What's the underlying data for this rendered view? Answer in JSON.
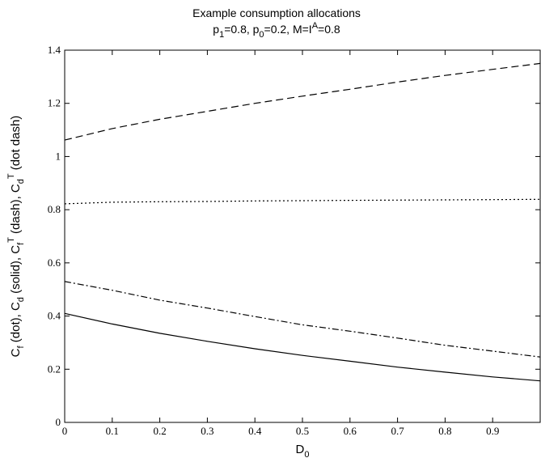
{
  "chart_data": {
    "type": "line",
    "title": "Example consumption allocations",
    "subtitle": {
      "parts": [
        {
          "t": "p"
        },
        {
          "t": "1",
          "sub": true
        },
        {
          "t": "=0.8, p"
        },
        {
          "t": "0",
          "sub": true
        },
        {
          "t": "=0.2, M=I"
        },
        {
          "t": "A",
          "sup": true
        },
        {
          "t": "=0.8"
        }
      ]
    },
    "xlabel": {
      "parts": [
        {
          "t": "D"
        },
        {
          "t": "0",
          "sub": true
        }
      ]
    },
    "ylabel": {
      "parts": [
        {
          "t": "C"
        },
        {
          "t": "f",
          "sub": true
        },
        {
          "t": " (dot), C"
        },
        {
          "t": "d",
          "sub": true
        },
        {
          "t": " (solid), C"
        },
        {
          "t": "f",
          "sub": true
        },
        {
          "t": "T",
          "sup": true
        },
        {
          "t": " (dash), C"
        },
        {
          "t": "d",
          "sub": true
        },
        {
          "t": "T",
          "sup": true
        },
        {
          "t": " (dot dash)"
        }
      ]
    },
    "xlim": [
      0,
      1
    ],
    "ylim": [
      0,
      1.4
    ],
    "xticks": [
      "0",
      "0.1",
      "0.2",
      "0.3",
      "0.4",
      "0.5",
      "0.6",
      "0.7",
      "0.8",
      "0.9"
    ],
    "yticks": [
      "0",
      "0.2",
      "0.4",
      "0.6",
      "0.8",
      "1",
      "1.2",
      "1.4"
    ],
    "grid": false,
    "line_color": "#000000",
    "series": [
      {
        "style": "dot",
        "x": [
          0,
          0.1,
          0.2,
          0.3,
          0.4,
          0.5,
          0.6,
          0.7,
          0.8,
          0.9,
          1.0
        ],
        "y": [
          0.822,
          0.828,
          0.83,
          0.831,
          0.833,
          0.834,
          0.835,
          0.836,
          0.837,
          0.838,
          0.839
        ]
      },
      {
        "style": "solid",
        "x": [
          0,
          0.1,
          0.2,
          0.3,
          0.4,
          0.5,
          0.6,
          0.7,
          0.8,
          0.9,
          1.0
        ],
        "y": [
          0.41,
          0.37,
          0.335,
          0.305,
          0.277,
          0.252,
          0.23,
          0.208,
          0.189,
          0.171,
          0.156
        ]
      },
      {
        "style": "dash",
        "x": [
          0,
          0.1,
          0.2,
          0.3,
          0.4,
          0.5,
          0.6,
          0.7,
          0.8,
          0.9,
          1.0
        ],
        "y": [
          1.062,
          1.105,
          1.14,
          1.17,
          1.2,
          1.227,
          1.253,
          1.28,
          1.305,
          1.328,
          1.35
        ]
      },
      {
        "style": "dotdash",
        "x": [
          0,
          0.1,
          0.2,
          0.3,
          0.4,
          0.5,
          0.6,
          0.7,
          0.8,
          0.9,
          1.0
        ],
        "y": [
          0.53,
          0.497,
          0.46,
          0.43,
          0.398,
          0.367,
          0.343,
          0.317,
          0.29,
          0.268,
          0.246
        ]
      }
    ]
  }
}
